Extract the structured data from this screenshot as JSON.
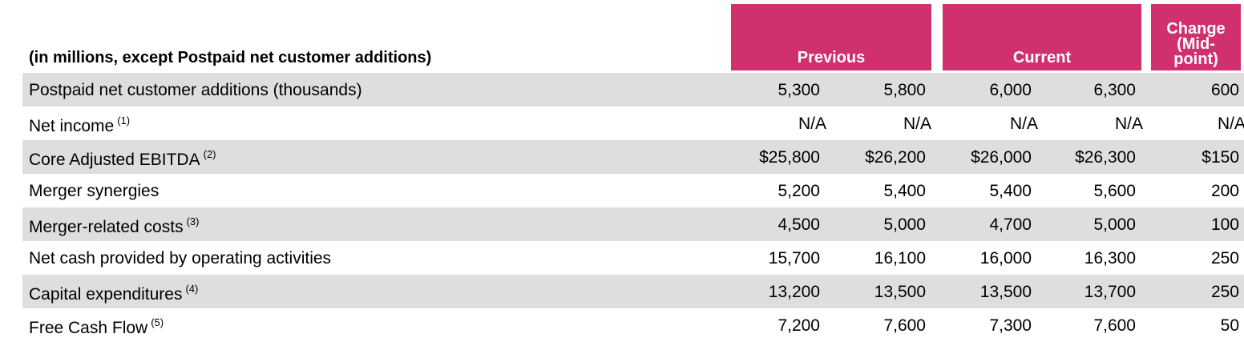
{
  "header": {
    "units_label": "(in millions, except Postpaid net customer additions)",
    "previous": "Previous",
    "current": "Current",
    "change": "Change (Mid-point)",
    "change_line1": "Change",
    "change_line2": "(Mid-",
    "change_line3": "point)"
  },
  "colors": {
    "header_bg": "#d1306f",
    "header_text": "#ffffff",
    "row_shade": "#dedede"
  },
  "rows": [
    {
      "label": "Postpaid net customer additions (thousands)",
      "note": "",
      "values": [
        "5,300",
        "5,800",
        "6,000",
        "6,300",
        "600"
      ]
    },
    {
      "label": "Net income",
      "note": "(1)",
      "values": [
        "N/A",
        "N/A",
        "N/A",
        "N/A",
        "N/A"
      ]
    },
    {
      "label": "Core Adjusted EBITDA",
      "note": "(2)",
      "values": [
        "$25,800",
        "$26,200",
        "$26,000",
        "$26,300",
        "$150"
      ]
    },
    {
      "label": "Merger synergies",
      "note": "",
      "values": [
        "5,200",
        "5,400",
        "5,400",
        "5,600",
        "200"
      ]
    },
    {
      "label": "Merger-related costs",
      "note": "(3)",
      "values": [
        "4,500",
        "5,000",
        "4,700",
        "5,000",
        "100"
      ]
    },
    {
      "label": "Net cash provided by operating activities",
      "note": "",
      "values": [
        "15,700",
        "16,100",
        "16,000",
        "16,300",
        "250"
      ]
    },
    {
      "label": "Capital expenditures",
      "note": "(4)",
      "values": [
        "13,200",
        "13,500",
        "13,500",
        "13,700",
        "250"
      ]
    },
    {
      "label": "Free Cash Flow",
      "note": "(5)",
      "values": [
        "7,200",
        "7,600",
        "7,300",
        "7,600",
        "50"
      ]
    }
  ]
}
